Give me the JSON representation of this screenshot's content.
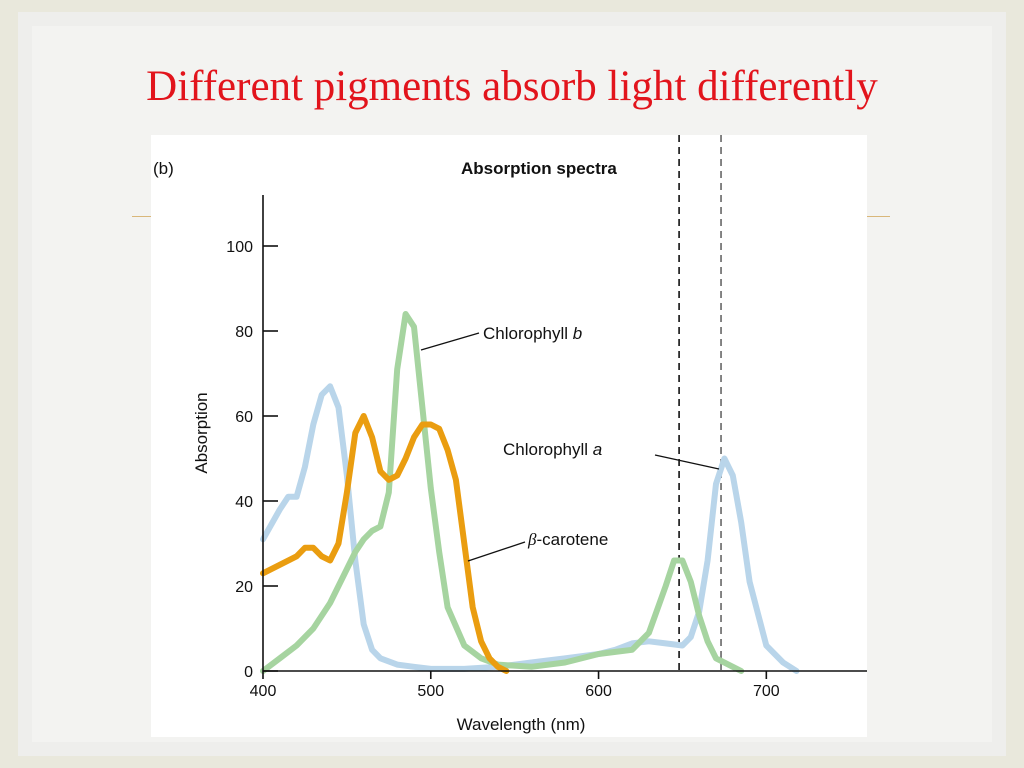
{
  "slide": {
    "title": "Different pigments absorb light differently",
    "background_color": "#e9e8dc",
    "title_color": "#e2141c",
    "accent_rule_color": "#d9b77a"
  },
  "chart_data": {
    "type": "line",
    "panel_label": "(b)",
    "title": "Absorption spectra",
    "xlabel": "Wavelength (nm)",
    "ylabel": "Absorption",
    "xlim": [
      400,
      760
    ],
    "ylim": [
      0,
      112
    ],
    "xticks": [
      400,
      500,
      600,
      700
    ],
    "yticks": [
      0,
      20,
      40,
      60,
      80,
      100
    ],
    "grid": false,
    "reference_lines": [
      {
        "x": 648,
        "color": "#111111",
        "style": "dashed"
      },
      {
        "x": 673,
        "color": "#666666",
        "style": "dashed"
      }
    ],
    "series": [
      {
        "name": "Chlorophyll a",
        "color": "#b9d5ea",
        "x": [
          400,
          410,
          415,
          420,
          425,
          430,
          435,
          440,
          445,
          450,
          455,
          460,
          465,
          470,
          480,
          490,
          500,
          520,
          540,
          560,
          580,
          600,
          610,
          620,
          630,
          640,
          650,
          655,
          660,
          665,
          670,
          675,
          680,
          685,
          690,
          700,
          710,
          718
        ],
        "values": [
          31,
          38,
          41,
          41,
          48,
          58,
          65,
          67,
          62,
          46,
          26,
          11,
          5,
          3,
          1.5,
          1,
          0.5,
          0.5,
          1,
          2,
          3,
          4,
          5,
          6.5,
          7,
          6.5,
          6,
          8,
          14,
          26,
          44,
          50,
          46,
          35,
          21,
          6,
          2,
          0
        ]
      },
      {
        "name": "Chlorophyll b",
        "color": "#a6d4a0",
        "x": [
          400,
          410,
          420,
          430,
          440,
          450,
          455,
          460,
          465,
          470,
          475,
          480,
          485,
          490,
          495,
          500,
          505,
          510,
          520,
          530,
          540,
          560,
          580,
          600,
          610,
          620,
          630,
          640,
          645,
          650,
          655,
          660,
          665,
          670,
          680,
          685
        ],
        "values": [
          0,
          3,
          6,
          10,
          16,
          24,
          28,
          31,
          33,
          34,
          42,
          71,
          84,
          81,
          62,
          43,
          28,
          15,
          6,
          3,
          1.5,
          1,
          2,
          4,
          4.5,
          5,
          9,
          20,
          26,
          26,
          21,
          13,
          7,
          3,
          1,
          0
        ]
      },
      {
        "name": "β-carotene",
        "color": "#ea9d10",
        "x": [
          400,
          410,
          420,
          425,
          430,
          435,
          440,
          445,
          450,
          455,
          460,
          465,
          470,
          475,
          480,
          485,
          490,
          495,
          500,
          505,
          510,
          515,
          520,
          525,
          530,
          535,
          540,
          545
        ],
        "values": [
          23,
          25,
          27,
          29,
          29,
          27,
          26,
          30,
          42,
          56,
          60,
          55,
          47,
          45,
          46,
          50,
          55,
          58,
          58,
          57,
          52,
          45,
          30,
          15,
          7,
          3,
          1,
          0
        ]
      }
    ],
    "annotations": [
      {
        "text": "Chlorophyll b",
        "series": "Chlorophyll b"
      },
      {
        "text": "Chlorophyll a",
        "series": "Chlorophyll a"
      },
      {
        "text": "-carotene",
        "prefix_greek": "β",
        "series": "β-carotene"
      }
    ]
  }
}
